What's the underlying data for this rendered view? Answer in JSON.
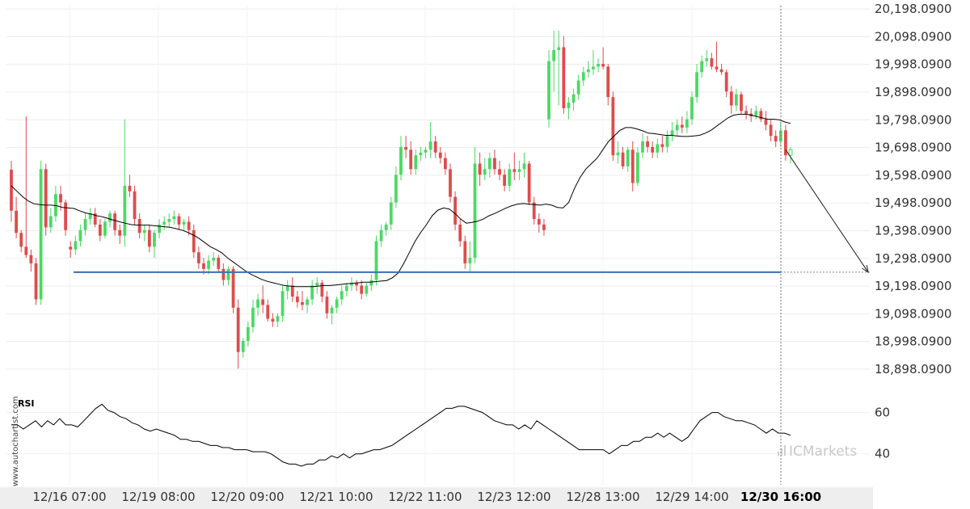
{
  "chart_data": [
    {
      "type": "candlestick",
      "y_tick_labels": [
        "20,198.0900",
        "20,098.0900",
        "19,998.0900",
        "19,898.0900",
        "19,798.0900",
        "19,698.0900",
        "19,598.0900",
        "19,498.0900",
        "19,398.0900",
        "19,298.0900",
        "19,198.0900",
        "19,098.0900",
        "18,998.0900",
        "18,898.0900"
      ],
      "ylim": [
        18860,
        20210
      ],
      "x_tick_labels": [
        "12/16 07:00",
        "12/19 08:00",
        "12/20 09:00",
        "12/21 10:00",
        "12/22 11:00",
        "12/23 12:00",
        "12/28 13:00",
        "12/29 14:00",
        "12/30 16:00"
      ],
      "highlighted_x_tick": "12/30 16:00",
      "support_level": 19248,
      "forecast_target": 19248,
      "moving_average_series": "MA",
      "colors": {
        "up": "#4cd964",
        "down": "#e04b4b",
        "support_line": "#3b6db4",
        "ma_line": "#000000"
      },
      "candles_ohlc": [
        [
          19618,
          19650,
          19430,
          19470
        ],
        [
          19470,
          19520,
          19370,
          19390
        ],
        [
          19390,
          19400,
          19320,
          19340
        ],
        [
          19340,
          19810,
          19300,
          19310
        ],
        [
          19310,
          19330,
          19250,
          19280
        ],
        [
          19280,
          19300,
          19130,
          19150
        ],
        [
          19150,
          19650,
          19130,
          19620
        ],
        [
          19620,
          19640,
          19380,
          19410
        ],
        [
          19410,
          19480,
          19390,
          19450
        ],
        [
          19450,
          19560,
          19430,
          19530
        ],
        [
          19530,
          19560,
          19470,
          19500
        ],
        [
          19500,
          19510,
          19380,
          19400
        ],
        [
          19340,
          19360,
          19300,
          19330
        ],
        [
          19330,
          19380,
          19310,
          19360
        ],
        [
          19360,
          19420,
          19340,
          19400
        ],
        [
          19400,
          19460,
          19380,
          19440
        ],
        [
          19440,
          19480,
          19420,
          19460
        ],
        [
          19460,
          19480,
          19410,
          19420
        ],
        [
          19420,
          19440,
          19360,
          19380
        ],
        [
          19380,
          19440,
          19370,
          19430
        ],
        [
          19430,
          19470,
          19410,
          19460
        ],
        [
          19460,
          19470,
          19380,
          19400
        ],
        [
          19400,
          19420,
          19350,
          19380
        ],
        [
          19380,
          19800,
          19340,
          19560
        ],
        [
          19560,
          19600,
          19520,
          19540
        ],
        [
          19540,
          19560,
          19420,
          19440
        ],
        [
          19440,
          19460,
          19370,
          19390
        ],
        [
          19390,
          19420,
          19360,
          19400
        ],
        [
          19400,
          19420,
          19320,
          19340
        ],
        [
          19340,
          19400,
          19300,
          19390
        ],
        [
          19390,
          19440,
          19370,
          19420
        ],
        [
          19420,
          19450,
          19400,
          19430
        ],
        [
          19430,
          19460,
          19410,
          19440
        ],
        [
          19440,
          19470,
          19420,
          19450
        ],
        [
          19450,
          19460,
          19400,
          19420
        ],
        [
          19420,
          19440,
          19400,
          19430
        ],
        [
          19430,
          19450,
          19380,
          19400
        ],
        [
          19400,
          19420,
          19300,
          19320
        ],
        [
          19320,
          19340,
          19260,
          19280
        ],
        [
          19280,
          19300,
          19240,
          19260
        ],
        [
          19260,
          19310,
          19240,
          19290
        ],
        [
          19290,
          19320,
          19270,
          19300
        ],
        [
          19300,
          19310,
          19250,
          19260
        ],
        [
          19260,
          19280,
          19200,
          19220
        ],
        [
          19220,
          19270,
          19200,
          19260
        ],
        [
          19260,
          19270,
          19100,
          19120
        ],
        [
          19120,
          19150,
          18900,
          18960
        ],
        [
          18960,
          19010,
          18940,
          19000
        ],
        [
          19000,
          19070,
          18980,
          19050
        ],
        [
          19050,
          19150,
          19030,
          19120
        ],
        [
          19120,
          19170,
          19090,
          19150
        ],
        [
          19150,
          19200,
          19100,
          19130
        ],
        [
          19130,
          19150,
          19070,
          19080
        ],
        [
          19080,
          19100,
          19050,
          19070
        ],
        [
          19070,
          19100,
          19050,
          19090
        ],
        [
          19090,
          19200,
          19070,
          19180
        ],
        [
          19180,
          19220,
          19150,
          19200
        ],
        [
          19200,
          19230,
          19140,
          19160
        ],
        [
          19160,
          19180,
          19120,
          19140
        ],
        [
          19140,
          19180,
          19110,
          19130
        ],
        [
          19130,
          19160,
          19100,
          19150
        ],
        [
          19150,
          19220,
          19130,
          19200
        ],
        [
          19200,
          19230,
          19170,
          19210
        ],
        [
          19210,
          19220,
          19140,
          19160
        ],
        [
          19160,
          19180,
          19080,
          19100
        ],
        [
          19100,
          19130,
          19060,
          19120
        ],
        [
          19120,
          19160,
          19100,
          19150
        ],
        [
          19150,
          19200,
          19130,
          19180
        ],
        [
          19180,
          19210,
          19160,
          19200
        ],
        [
          19200,
          19230,
          19180,
          19210
        ],
        [
          19210,
          19220,
          19180,
          19200
        ],
        [
          19200,
          19220,
          19150,
          19170
        ],
        [
          19170,
          19210,
          19160,
          19200
        ],
        [
          19200,
          19240,
          19180,
          19220
        ],
        [
          19220,
          19380,
          19200,
          19360
        ],
        [
          19360,
          19420,
          19340,
          19400
        ],
        [
          19400,
          19430,
          19380,
          19420
        ],
        [
          19420,
          19520,
          19400,
          19500
        ],
        [
          19500,
          19630,
          19480,
          19600
        ],
        [
          19600,
          19740,
          19580,
          19700
        ],
        [
          19700,
          19740,
          19660,
          19690
        ],
        [
          19690,
          19720,
          19600,
          19620
        ],
        [
          19620,
          19690,
          19600,
          19670
        ],
        [
          19670,
          19700,
          19650,
          19680
        ],
        [
          19680,
          19700,
          19660,
          19690
        ],
        [
          19690,
          19790,
          19660,
          19720
        ],
        [
          19720,
          19740,
          19660,
          19680
        ],
        [
          19680,
          19700,
          19640,
          19660
        ],
        [
          19660,
          19680,
          19600,
          19620
        ],
        [
          19620,
          19640,
          19500,
          19520
        ],
        [
          19520,
          19540,
          19400,
          19420
        ],
        [
          19420,
          19440,
          19340,
          19360
        ],
        [
          19360,
          19380,
          19260,
          19280
        ],
        [
          19280,
          19360,
          19250,
          19300
        ],
        [
          19300,
          19700,
          19280,
          19640
        ],
        [
          19640,
          19680,
          19560,
          19600
        ],
        [
          19600,
          19660,
          19580,
          19620
        ],
        [
          19620,
          19680,
          19590,
          19660
        ],
        [
          19660,
          19690,
          19600,
          19620
        ],
        [
          19620,
          19650,
          19580,
          19600
        ],
        [
          19600,
          19620,
          19540,
          19560
        ],
        [
          19560,
          19640,
          19540,
          19620
        ],
        [
          19620,
          19680,
          19580,
          19610
        ],
        [
          19610,
          19650,
          19580,
          19620
        ],
        [
          19620,
          19680,
          19590,
          19640
        ],
        [
          19640,
          19650,
          19490,
          19500
        ],
        [
          19500,
          19520,
          19420,
          19440
        ],
        [
          19440,
          19460,
          19390,
          19420
        ],
        [
          19420,
          19440,
          19380,
          19400
        ],
        [
          19800,
          20050,
          19770,
          20010
        ],
        [
          20010,
          20120,
          19900,
          20050
        ],
        [
          20050,
          20120,
          19850,
          20060
        ],
        [
          20060,
          20100,
          19820,
          19840
        ],
        [
          19840,
          19880,
          19800,
          19860
        ],
        [
          19860,
          19910,
          19830,
          19890
        ],
        [
          19890,
          19960,
          19870,
          19940
        ],
        [
          19940,
          19990,
          19920,
          19970
        ],
        [
          19970,
          20010,
          19950,
          19980
        ],
        [
          19980,
          20050,
          19960,
          19990
        ],
        [
          19990,
          20020,
          19970,
          20000
        ],
        [
          20000,
          20060,
          19980,
          19990
        ],
        [
          19990,
          20000,
          19850,
          19880
        ],
        [
          19880,
          19900,
          19650,
          19670
        ],
        [
          19670,
          19720,
          19640,
          19680
        ],
        [
          19680,
          19700,
          19620,
          19630
        ],
        [
          19630,
          19700,
          19610,
          19690
        ],
        [
          19690,
          19720,
          19540,
          19570
        ],
        [
          19570,
          19700,
          19560,
          19680
        ],
        [
          19680,
          19750,
          19660,
          19720
        ],
        [
          19720,
          19740,
          19680,
          19700
        ],
        [
          19700,
          19720,
          19660,
          19680
        ],
        [
          19680,
          19730,
          19660,
          19710
        ],
        [
          19710,
          19740,
          19680,
          19700
        ],
        [
          19700,
          19760,
          19680,
          19740
        ],
        [
          19740,
          19790,
          19720,
          19760
        ],
        [
          19760,
          19800,
          19740,
          19780
        ],
        [
          19780,
          19810,
          19750,
          19770
        ],
        [
          19770,
          19830,
          19750,
          19800
        ],
        [
          19800,
          19900,
          19780,
          19880
        ],
        [
          19880,
          20000,
          19860,
          19970
        ],
        [
          19970,
          20030,
          19950,
          20010
        ],
        [
          20010,
          20050,
          19990,
          20020
        ],
        [
          20020,
          20040,
          19980,
          19990
        ],
        [
          19990,
          20080,
          19970,
          19980
        ],
        [
          19980,
          20000,
          19960,
          19970
        ],
        [
          19970,
          19980,
          19880,
          19900
        ],
        [
          19900,
          19920,
          19820,
          19850
        ],
        [
          19850,
          19910,
          19830,
          19890
        ],
        [
          19890,
          19900,
          19820,
          19830
        ],
        [
          19830,
          19850,
          19800,
          19820
        ],
        [
          19820,
          19840,
          19790,
          19810
        ],
        [
          19810,
          19850,
          19800,
          19830
        ],
        [
          19830,
          19840,
          19790,
          19800
        ],
        [
          19800,
          19830,
          19760,
          19780
        ],
        [
          19780,
          19800,
          19720,
          19740
        ],
        [
          19740,
          19760,
          19700,
          19720
        ],
        [
          19720,
          19790,
          19700,
          19760
        ],
        [
          19760,
          19780,
          19650,
          19670
        ],
        [
          19670,
          19700,
          19640,
          19690
        ]
      ],
      "ma_values": [
        19560,
        19540,
        19520,
        19505,
        19495,
        19492,
        19490,
        19490,
        19488,
        19482,
        19480,
        19478,
        19470,
        19462,
        19458,
        19452,
        19448,
        19442,
        19436,
        19430,
        19425,
        19420,
        19418,
        19418,
        19418,
        19416,
        19414,
        19412,
        19410,
        19405,
        19400,
        19392,
        19382,
        19370,
        19355,
        19340,
        19330,
        19318,
        19300,
        19285,
        19270,
        19255,
        19242,
        19232,
        19222,
        19215,
        19210,
        19205,
        19200,
        19198,
        19196,
        19196,
        19196,
        19196,
        19198,
        19200,
        19200,
        19202,
        19204,
        19206,
        19208,
        19210,
        19212,
        19212,
        19214,
        19216,
        19218,
        19228,
        19245,
        19280,
        19320,
        19360,
        19392,
        19420,
        19452,
        19472,
        19480,
        19476,
        19460,
        19440,
        19425,
        19428,
        19432,
        19440,
        19452,
        19460,
        19470,
        19480,
        19488,
        19494,
        19496,
        19494,
        19492,
        19490,
        19494,
        19490,
        19482,
        19480,
        19500,
        19550,
        19590,
        19620,
        19640,
        19660,
        19690,
        19720,
        19740,
        19760,
        19770,
        19770,
        19765,
        19758,
        19750,
        19748,
        19745,
        19742,
        19742,
        19740,
        19738,
        19738,
        19740,
        19742,
        19750,
        19760,
        19775,
        19790,
        19805,
        19815,
        19818,
        19818,
        19816,
        19810,
        19805,
        19800,
        19800,
        19798,
        19790,
        19785
      ]
    },
    {
      "type": "line",
      "title": "RSI",
      "y_tick_labels": [
        "60",
        "40"
      ],
      "ylim": [
        25,
        70
      ],
      "values": [
        54,
        54,
        52,
        54,
        56,
        53,
        56,
        54,
        57,
        54,
        54,
        53,
        56,
        59,
        62,
        64,
        61,
        60,
        58,
        57,
        55,
        54,
        52,
        51,
        52,
        51,
        50,
        49,
        47,
        47,
        46,
        46,
        45,
        44,
        44,
        43,
        43,
        42,
        42,
        42,
        41,
        41,
        41,
        40,
        38,
        36,
        35,
        35,
        34,
        35,
        35,
        37,
        37,
        39,
        38,
        40,
        38,
        40,
        40,
        41,
        42,
        42,
        43,
        44,
        46,
        48,
        50,
        52,
        54,
        56,
        58,
        60,
        62,
        62,
        63,
        63,
        62,
        61,
        60,
        58,
        56,
        55,
        54,
        54,
        52,
        54,
        52,
        56,
        54,
        52,
        50,
        48,
        46,
        44,
        42,
        42,
        42,
        42,
        42,
        40,
        42,
        44,
        44,
        46,
        46,
        48,
        48,
        50,
        48,
        50,
        48,
        46,
        48,
        52,
        56,
        58,
        60,
        60,
        58,
        57,
        56,
        56,
        55,
        54,
        52,
        50,
        52,
        50,
        50,
        49
      ]
    }
  ],
  "watermark": {
    "vertical": "www.autochartist.com",
    "brand": "ICMarkets"
  }
}
